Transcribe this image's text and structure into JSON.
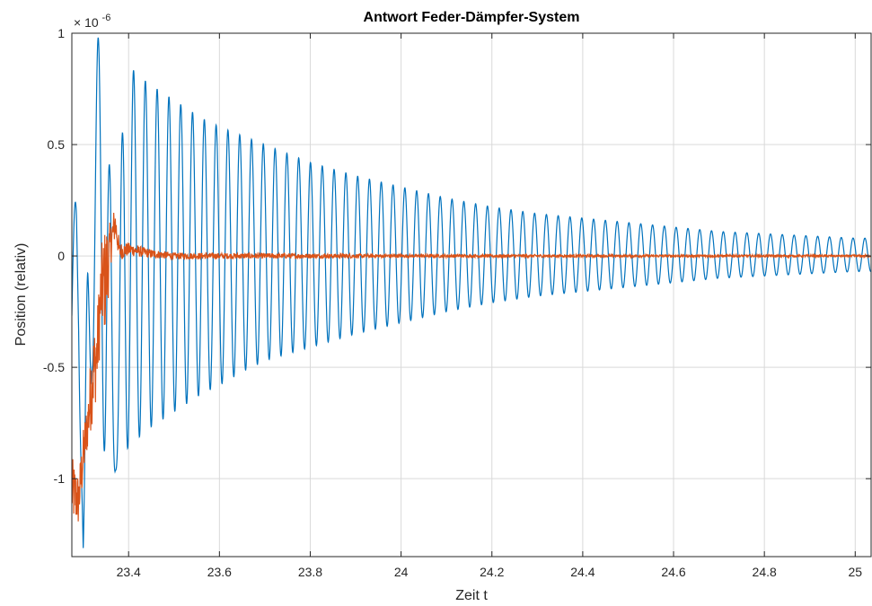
{
  "chart_data": {
    "type": "line",
    "title": "Antwort Feder-Dämpfer-System",
    "xlabel": "Zeit t",
    "ylabel": "Position (relativ)",
    "exponent_label": "× 10",
    "exponent_power": "-6",
    "xlim": [
      23.275,
      25.035
    ],
    "ylim": [
      -1.35,
      1.0
    ],
    "xticks": [
      23.4,
      23.6,
      23.8,
      24,
      24.2,
      24.4,
      24.6,
      24.8,
      25
    ],
    "xtick_labels": [
      "23.4",
      "23.6",
      "23.8",
      "24",
      "24.2",
      "24.4",
      "24.6",
      "24.8",
      "25"
    ],
    "yticks": [
      1,
      0.5,
      0,
      -0.5,
      -1
    ],
    "ytick_labels": [
      "1",
      "0.5",
      "0",
      "-0.5",
      "-1"
    ],
    "grid": true,
    "series": [
      {
        "color": "#0072BD",
        "x": [
          23.275,
          23.285,
          23.29,
          23.3,
          23.31,
          23.32,
          23.335,
          23.35,
          23.36,
          23.37,
          23.385,
          23.39,
          23.4,
          23.42,
          23.44,
          23.47,
          23.5,
          23.53,
          23.56,
          23.6,
          23.65,
          23.7,
          23.8,
          23.9,
          24.0,
          24.1,
          24.2,
          24.3,
          24.4,
          24.5,
          24.6,
          24.7,
          24.8,
          24.9,
          25.0,
          25.035
        ],
        "y_envelope_upper": [
          0.0,
          0.35,
          0.25,
          -1.3,
          0.1,
          0.98,
          0.98,
          0.92,
          0.3,
          -0.95,
          0.5,
          0.85,
          0.85,
          0.82,
          0.78,
          0.74,
          0.7,
          0.66,
          0.62,
          0.58,
          0.54,
          0.5,
          0.42,
          0.36,
          0.31,
          0.26,
          0.22,
          0.19,
          0.17,
          0.15,
          0.13,
          0.11,
          0.1,
          0.09,
          0.08,
          0.08
        ],
        "y_envelope_lower": [
          -0.6,
          -0.4,
          -0.5,
          -1.33,
          -1.3,
          -0.5,
          -0.5,
          -1.0,
          -0.97,
          -0.97,
          -0.9,
          -0.88,
          -0.86,
          -0.82,
          -0.78,
          -0.74,
          -0.7,
          -0.66,
          -0.62,
          -0.58,
          -0.52,
          -0.47,
          -0.41,
          -0.35,
          -0.3,
          -0.25,
          -0.21,
          -0.18,
          -0.16,
          -0.14,
          -0.12,
          -0.1,
          -0.09,
          -0.08,
          -0.07,
          -0.07
        ],
        "frequency_hz": 38.5,
        "peak_value": 0.99
      },
      {
        "color": "#D95319",
        "x": [
          23.275,
          23.29,
          23.3,
          23.31,
          23.32,
          23.33,
          23.34,
          23.35,
          23.36,
          23.37,
          23.38,
          23.4,
          23.45,
          23.5,
          24.0,
          24.5,
          25.035
        ],
        "y": [
          -1.05,
          -1.1,
          -0.9,
          -0.75,
          -0.55,
          -0.45,
          -0.15,
          -0.1,
          0.05,
          0.15,
          0.02,
          0.03,
          0.01,
          0.0,
          0.0,
          0.0,
          0.0
        ],
        "noise_amplitude": [
          0.15,
          0.12,
          0.12,
          0.12,
          0.2,
          0.18,
          0.2,
          0.25,
          0.1,
          0.08,
          0.04,
          0.03,
          0.02,
          0.015,
          0.008,
          0.006,
          0.005
        ],
        "peak_value": 0.2
      }
    ]
  }
}
